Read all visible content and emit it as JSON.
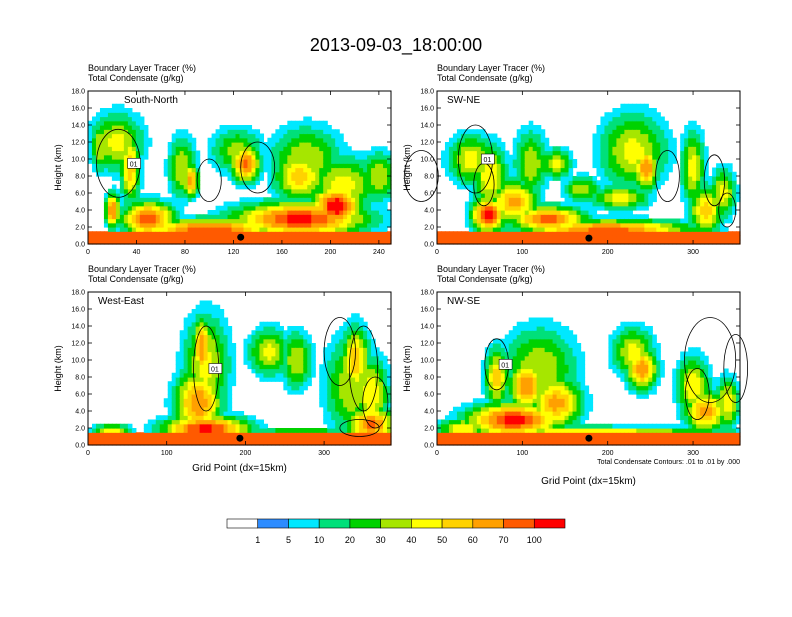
{
  "figure_title": "2013-09-03_18:00:00",
  "panel_header_line1": "Boundary Layer Tracer    (%)",
  "panel_header_line2": "Total Condensate    (g/kg)",
  "contour_note": "Total Condensate Contours: .01 to .01 by .000",
  "colors": {
    "bins": [
      "#ffffff",
      "#2d8cff",
      "#00e8ff",
      "#00e07a",
      "#00d200",
      "#a6e600",
      "#ffff00",
      "#ffd200",
      "#ffa000",
      "#ff5a00",
      "#ff0000"
    ],
    "contour": "#000000",
    "marker": "#000000"
  },
  "colorbar": {
    "labels": [
      "1",
      "5",
      "10",
      "20",
      "30",
      "40",
      "50",
      "60",
      "70",
      "100"
    ]
  },
  "chart_data": [
    {
      "type": "heatmap",
      "name": "South-North",
      "ylabel": "Height (km)",
      "xlabel": "",
      "xlim": [
        0,
        250
      ],
      "ylim": [
        0,
        18
      ],
      "xticks": [
        "0",
        "40",
        "80",
        "120",
        "160",
        "200",
        "240"
      ],
      "yticks": [
        "0.0",
        "2.0",
        "4.0",
        "6.0",
        "8.0",
        "10.0",
        "12.0",
        "14.0",
        "16.0",
        "18.0"
      ],
      "marker": {
        "x": 126,
        "y": 0.8
      },
      "contour_label": "01"
    },
    {
      "type": "heatmap",
      "name": "SW-NE",
      "ylabel": "Height (km)",
      "xlabel": "",
      "xlim": [
        0,
        355
      ],
      "ylim": [
        0,
        18
      ],
      "xticks": [
        "0",
        "100",
        "200",
        "300"
      ],
      "yticks": [
        "0.0",
        "2.0",
        "4.0",
        "6.0",
        "8.0",
        "10.0",
        "12.0",
        "14.0",
        "16.0",
        "18.0"
      ],
      "marker": {
        "x": 178,
        "y": 0.7
      },
      "contour_label": "01"
    },
    {
      "type": "heatmap",
      "name": "West-East",
      "ylabel": "Height (km)",
      "xlabel": "Grid Point (dx=15km)",
      "xlim": [
        0,
        385
      ],
      "ylim": [
        0,
        18
      ],
      "xticks": [
        "0",
        "100",
        "200",
        "300"
      ],
      "yticks": [
        "0.0",
        "2.0",
        "4.0",
        "6.0",
        "8.0",
        "10.0",
        "12.0",
        "14.0",
        "16.0",
        "18.0"
      ],
      "marker": {
        "x": 193,
        "y": 0.8
      },
      "contour_label": "01"
    },
    {
      "type": "heatmap",
      "name": "NW-SE",
      "ylabel": "Height (km)",
      "xlabel": "Grid Point (dx=15km)",
      "xlim": [
        0,
        355
      ],
      "ylim": [
        0,
        18
      ],
      "xticks": [
        "0",
        "100",
        "200",
        "300"
      ],
      "yticks": [
        "0.0",
        "2.0",
        "4.0",
        "6.0",
        "8.0",
        "10.0",
        "12.0",
        "14.0",
        "16.0",
        "18.0"
      ],
      "marker": {
        "x": 178,
        "y": 0.8
      },
      "contour_label": "01"
    }
  ]
}
